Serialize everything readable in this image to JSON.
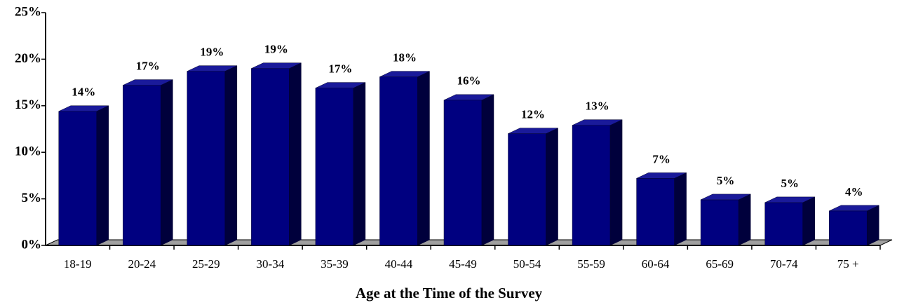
{
  "chart_data": {
    "type": "bar3d",
    "x_label": "Age at the Time of the Survey",
    "categories": [
      "18-19",
      "20-24",
      "25-29",
      "30-34",
      "35-39",
      "40-44",
      "45-49",
      "50-54",
      "55-59",
      "60-64",
      "65-69",
      "70-74",
      "75 +"
    ],
    "values": [
      14.4,
      17.2,
      18.7,
      19.0,
      16.9,
      18.1,
      15.6,
      12.0,
      12.9,
      7.2,
      4.9,
      4.6,
      3.7
    ],
    "value_labels": [
      "14%",
      "17%",
      "19%",
      "19%",
      "17%",
      "18%",
      "16%",
      "12%",
      "13%",
      "7%",
      "5%",
      "5%",
      "4%"
    ],
    "color": "#000080",
    "ylim": [
      0,
      25
    ],
    "yticks": [
      {
        "value": 0,
        "label": "0%"
      },
      {
        "value": 5,
        "label": "5%"
      },
      {
        "value": 10,
        "label": "10%"
      },
      {
        "value": 15,
        "label": "15%"
      },
      {
        "value": 20,
        "label": "20%"
      },
      {
        "value": 25,
        "label": "25%"
      }
    ]
  }
}
